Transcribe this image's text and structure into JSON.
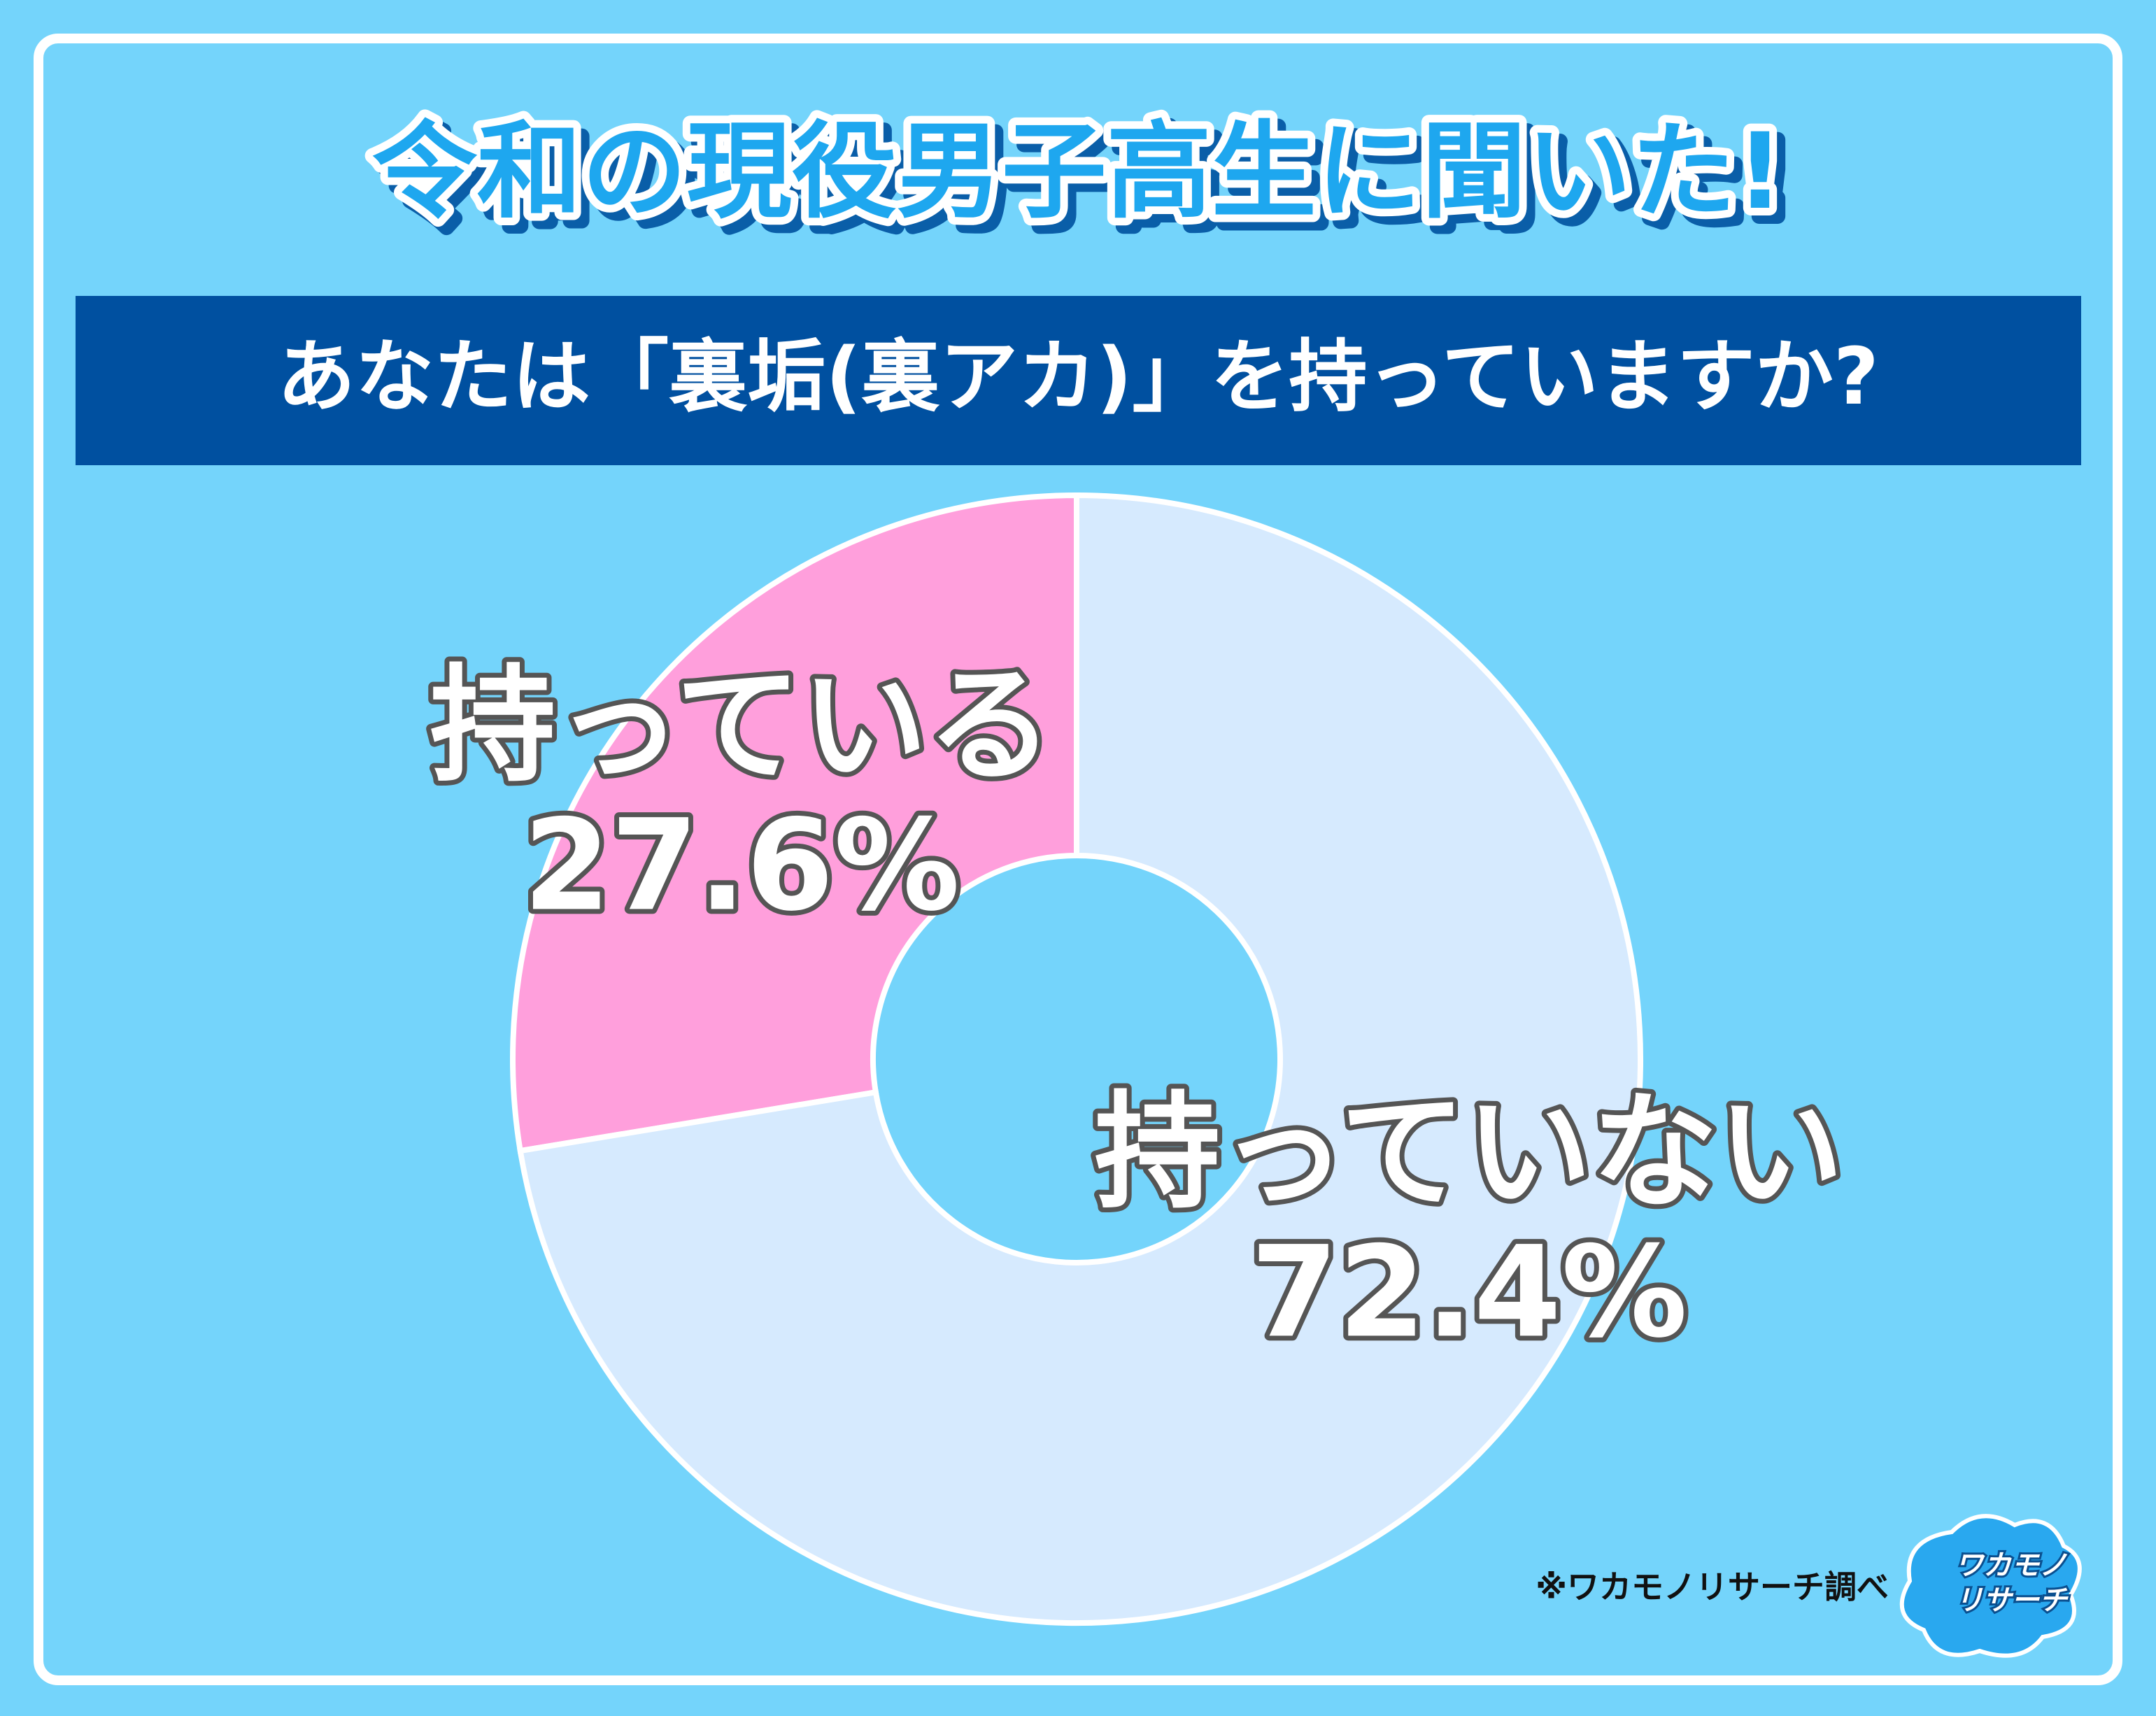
{
  "chart_data": {
    "type": "donut",
    "title": "令和の現役男子高生に聞いた!",
    "subtitle": "あなたは「裏垢(裏アカ)」を持っていますか?",
    "categories": [
      "持っている",
      "持っていない"
    ],
    "values": [
      27.6,
      72.4
    ],
    "value_labels": [
      "27.6%",
      "72.4%"
    ],
    "colors": [
      "#ff9fdc",
      "#d6eafe"
    ],
    "note": "※ワカモノリサーチ調べ",
    "logo": [
      "ワカモノ",
      "リサーチ"
    ]
  }
}
